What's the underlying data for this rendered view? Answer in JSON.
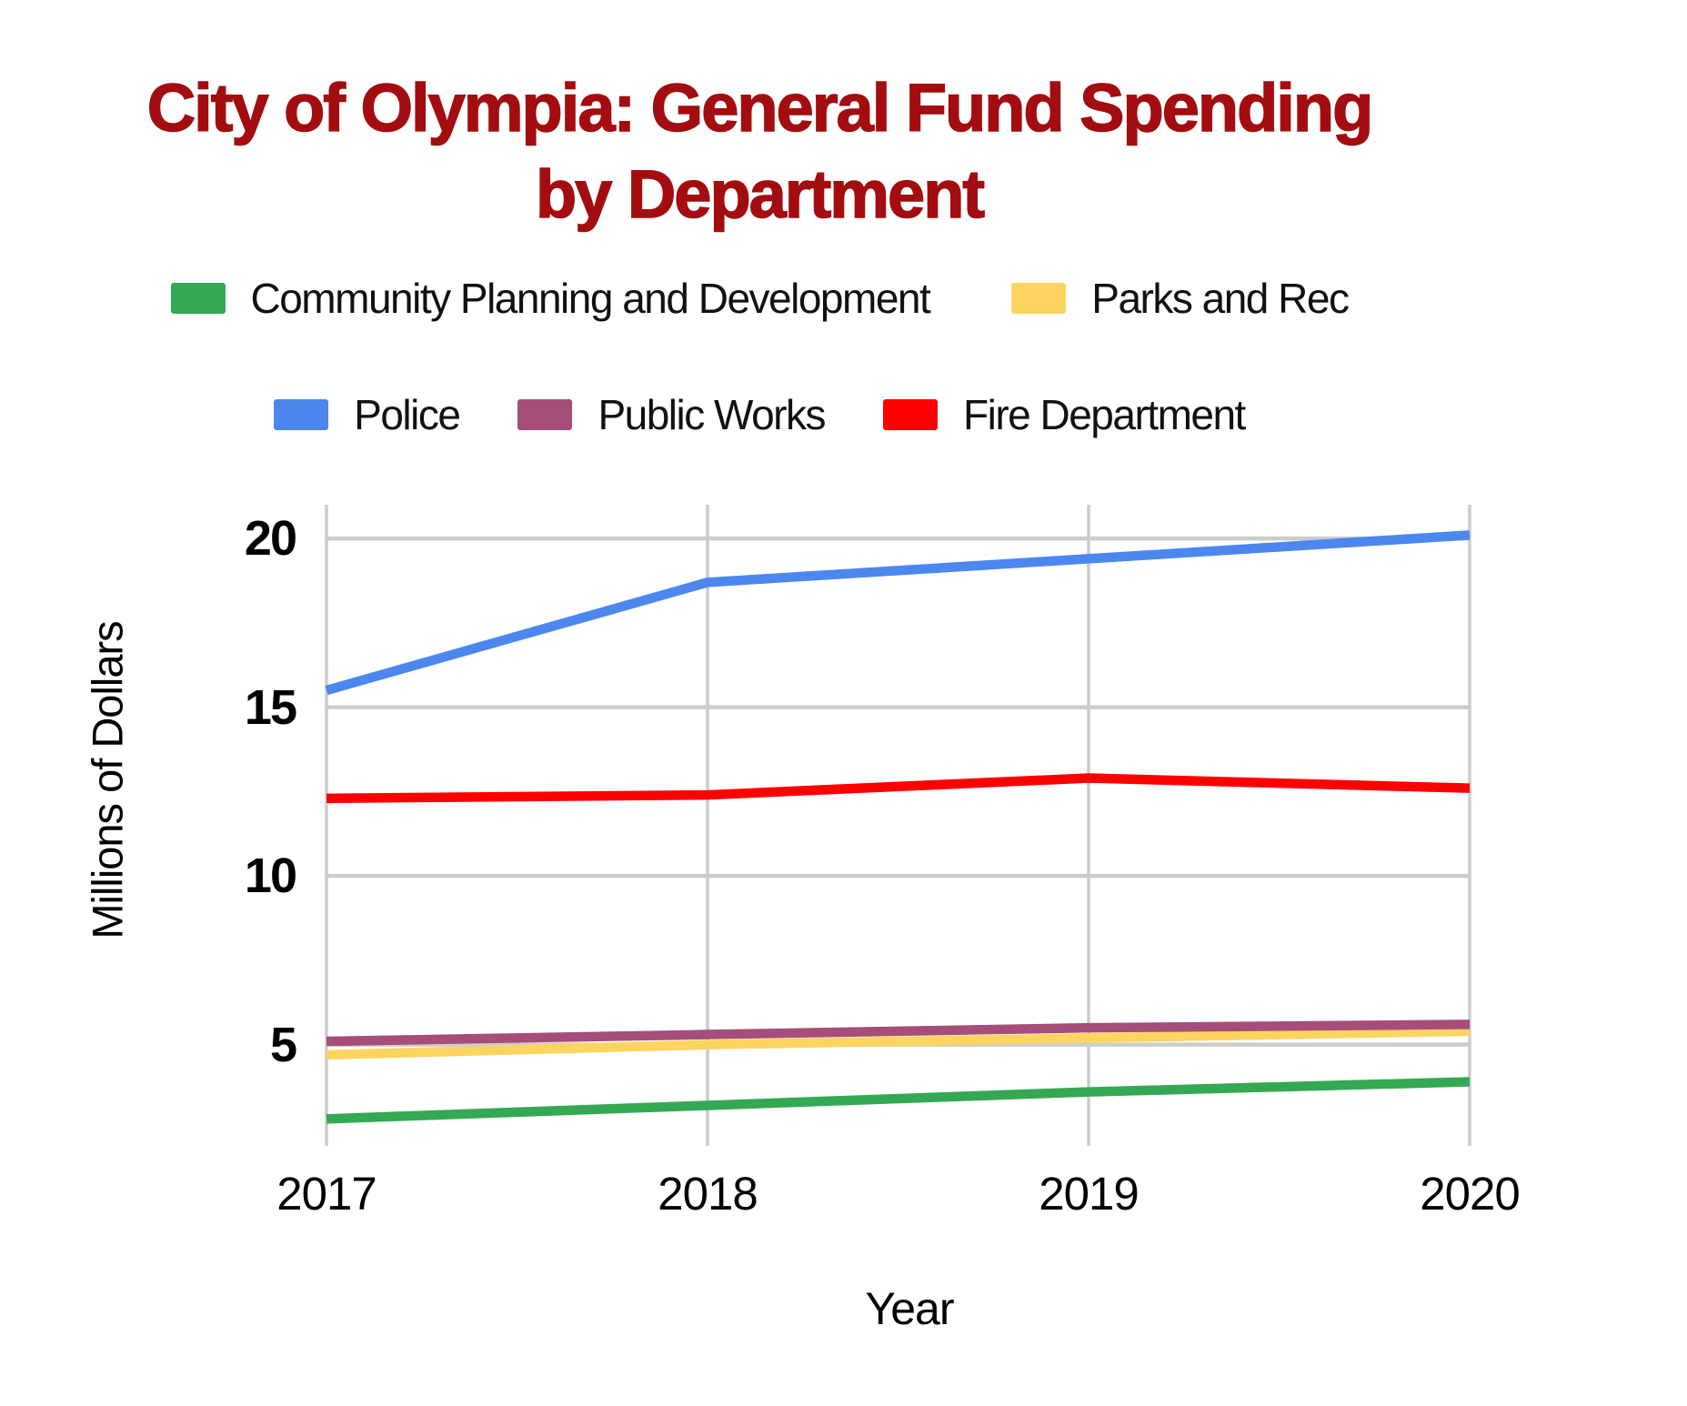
{
  "title": {
    "text": "City of Olympia: General Fund Spending by Department",
    "color": "#A30D10"
  },
  "legend": {
    "rows": [
      [
        {
          "label": "Community Planning and Development",
          "color": "#34A853"
        },
        {
          "label": "Parks and Rec",
          "color": "#FCD45F"
        }
      ],
      [
        {
          "label": "Police",
          "color": "#4C87F0"
        },
        {
          "label": "Public Works",
          "color": "#A64D79"
        },
        {
          "label": "Fire Department",
          "color": "#FF0000"
        }
      ]
    ]
  },
  "chart_data": {
    "type": "line",
    "title": "City of Olympia: General Fund Spending by Department",
    "x": [
      2017,
      2018,
      2019,
      2020
    ],
    "series": [
      {
        "name": "Community Planning and Development",
        "color": "#34A853",
        "values": [
          2.8,
          3.2,
          3.6,
          3.9
        ]
      },
      {
        "name": "Parks and Rec",
        "color": "#FCD45F",
        "values": [
          4.7,
          5.0,
          5.2,
          5.4
        ]
      },
      {
        "name": "Police",
        "color": "#4C87F0",
        "values": [
          15.5,
          18.7,
          19.4,
          20.1
        ]
      },
      {
        "name": "Public Works",
        "color": "#A64D79",
        "values": [
          5.1,
          5.3,
          5.5,
          5.6
        ]
      },
      {
        "name": "Fire Department",
        "color": "#FF0000",
        "values": [
          12.3,
          12.4,
          12.9,
          12.6
        ]
      }
    ],
    "xlabel": "Year",
    "ylabel": "Millions of Dollars",
    "yticks": [
      5,
      10,
      15,
      20
    ],
    "ylim": [
      2,
      21
    ],
    "grid": true,
    "legend_position": "top",
    "gridline_color": "#CCCCCC"
  }
}
